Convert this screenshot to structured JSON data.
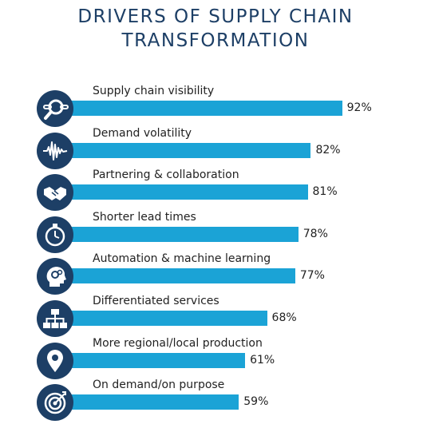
{
  "title_line1": "DRIVERS OF SUPPLY CHAIN",
  "title_line2": "TRANSFORMATION",
  "colors": {
    "bar": "#1ba3d6",
    "icon_bg": "#1d3f66",
    "title": "#1d3f66"
  },
  "chart_data": {
    "type": "bar",
    "orientation": "horizontal",
    "title": "DRIVERS OF SUPPLY CHAIN TRANSFORMATION",
    "categories": [
      "Supply chain visibility",
      "Demand volatility",
      "Partnering & collaboration",
      "Shorter lead times",
      "Automation & machine learning",
      "Differentiated services",
      "More regional/local production",
      "On demand/on purpose"
    ],
    "values": [
      92,
      82,
      81,
      78,
      77,
      68,
      61,
      59
    ],
    "value_labels": [
      "92%",
      "82%",
      "81%",
      "78%",
      "77%",
      "68%",
      "61%",
      "59%"
    ],
    "icons": [
      "magnifier-chain-icon",
      "waveform-icon",
      "handshake-icon",
      "stopwatch-icon",
      "head-gears-icon",
      "hierarchy-icon",
      "location-pin-icon",
      "target-icon"
    ],
    "xlim": [
      0,
      100
    ]
  }
}
